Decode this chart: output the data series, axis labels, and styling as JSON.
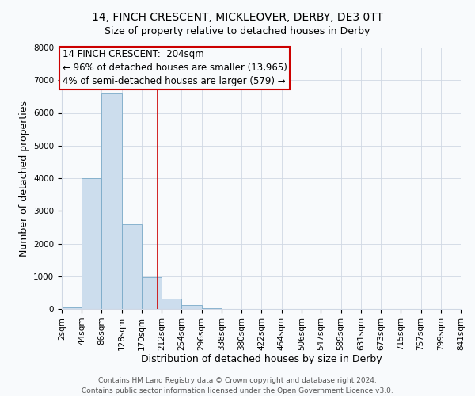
{
  "title": "14, FINCH CRESCENT, MICKLEOVER, DERBY, DE3 0TT",
  "subtitle": "Size of property relative to detached houses in Derby",
  "xlabel": "Distribution of detached houses by size in Derby",
  "ylabel": "Number of detached properties",
  "bin_edges": [
    2,
    44,
    86,
    128,
    170,
    212,
    254,
    296,
    338,
    380,
    422,
    464,
    506,
    547,
    589,
    631,
    673,
    715,
    757,
    799,
    841
  ],
  "bin_counts": [
    60,
    4000,
    6600,
    2600,
    980,
    320,
    130,
    20,
    0,
    0,
    0,
    0,
    0,
    0,
    0,
    0,
    0,
    0,
    0,
    0
  ],
  "property_size": 204,
  "bar_color": "#ccdded",
  "bar_edge_color": "#7aaac8",
  "vline_color": "#cc0000",
  "vline_x": 204,
  "ylim": [
    0,
    8000
  ],
  "yticks": [
    0,
    1000,
    2000,
    3000,
    4000,
    5000,
    6000,
    7000,
    8000
  ],
  "annotation_line1": "14 FINCH CRESCENT:  204sqm",
  "annotation_line2": "← 96% of detached houses are smaller (13,965)",
  "annotation_line3": "4% of semi-detached houses are larger (579) →",
  "annotation_box_color": "#cc0000",
  "footer_line1": "Contains HM Land Registry data © Crown copyright and database right 2024.",
  "footer_line2": "Contains public sector information licensed under the Open Government Licence v3.0.",
  "bg_color": "#f8fafc",
  "grid_color": "#d0d8e4",
  "title_fontsize": 10,
  "subtitle_fontsize": 9,
  "axis_label_fontsize": 9,
  "tick_fontsize": 7.5,
  "annotation_fontsize": 8.5,
  "footer_fontsize": 6.5
}
